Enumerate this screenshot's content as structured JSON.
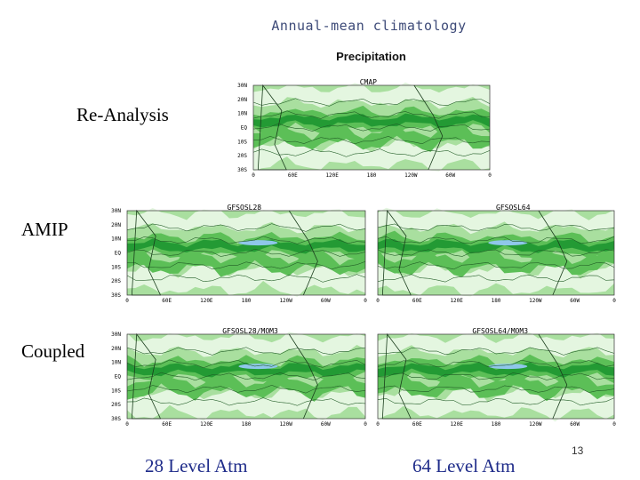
{
  "slide": {
    "title": "Annual-mean climatology",
    "subtitle": "Precipitation",
    "row_labels": {
      "reanalysis": "Re-Analysis",
      "amip": "AMIP",
      "coupled": "Coupled"
    },
    "column_labels": {
      "left": "28 Level Atm",
      "right": "64 Level Atm"
    },
    "page_number": "13"
  },
  "panels": {
    "cmap": {
      "title": "CMAP",
      "lat_labels": [
        "30N",
        "20N",
        "10N",
        "EQ",
        "10S",
        "20S",
        "30S"
      ],
      "lon_labels": [
        "0",
        "60E",
        "120E",
        "180",
        "120W",
        "60W",
        "0"
      ]
    },
    "gfs28": {
      "title": "GFSOSL28",
      "lat_labels": [
        "30N",
        "20N",
        "10N",
        "EQ",
        "10S",
        "20S",
        "30S"
      ],
      "lon_labels": [
        "0",
        "60E",
        "120E",
        "180",
        "120W",
        "60W",
        "0"
      ]
    },
    "gfs64": {
      "title": "GFSOSL64",
      "lat_labels": [],
      "lon_labels": [
        "0",
        "60E",
        "120E",
        "180",
        "120W",
        "60W",
        "0"
      ]
    },
    "gfs28mom": {
      "title": "GFSOSL28/MOM3",
      "lat_labels": [
        "30N",
        "20N",
        "10N",
        "EQ",
        "10S",
        "20S",
        "30S"
      ],
      "lon_labels": [
        "0",
        "60E",
        "120E",
        "180",
        "120W",
        "60W",
        "0"
      ]
    },
    "gfs64mom": {
      "title": "GFSOSL64/MOM3",
      "lat_labels": [],
      "lon_labels": [
        "0",
        "60E",
        "120E",
        "180",
        "120W",
        "60W",
        "0"
      ]
    }
  },
  "colors": {
    "pale_green": "#e4f6e0",
    "light_green": "#a9df9f",
    "mid_green": "#5cbf57",
    "dark_green": "#239a34",
    "heavy_blue": "#8fc7ea",
    "panel_title_red": "#e01010"
  }
}
